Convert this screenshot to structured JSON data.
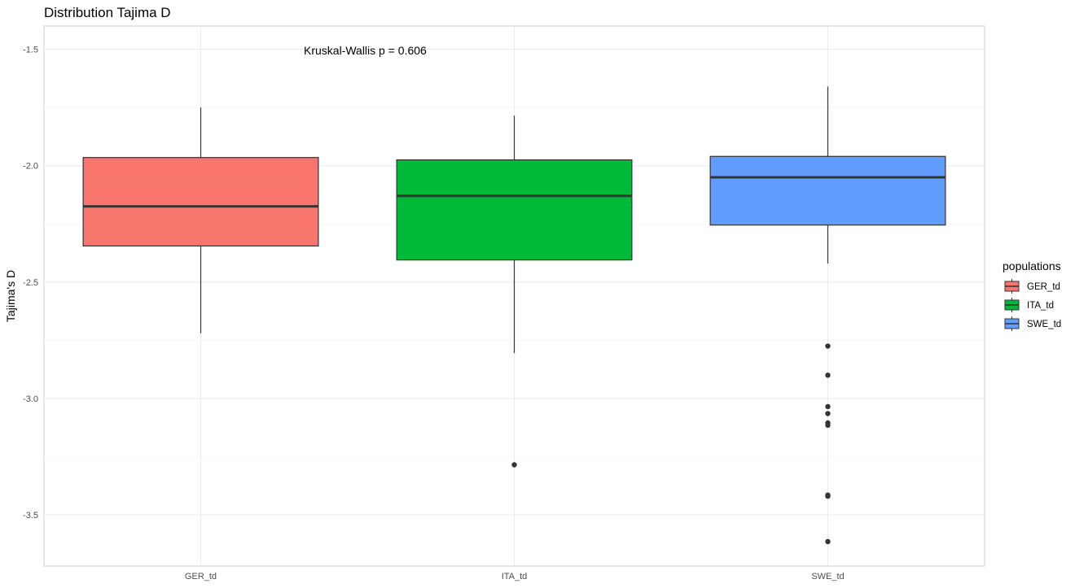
{
  "chart_data": {
    "type": "boxplot",
    "title": "Distribution Tajima D",
    "xlabel": "",
    "ylabel": "Tajima's D",
    "ylim": [
      -3.72,
      -1.4
    ],
    "yticks": [
      -1.5,
      -2.0,
      -2.5,
      -3.0,
      -3.5
    ],
    "ytick_labels": [
      "-1.5",
      "-2.0",
      "-2.5",
      "-3.0",
      "-3.5"
    ],
    "grid": true,
    "categories": [
      "GER_td",
      "ITA_td",
      "SWE_td"
    ],
    "series": [
      {
        "name": "GER_td",
        "color": "#F8766D",
        "whisker_low": -2.72,
        "q1": -2.345,
        "median": -2.175,
        "q3": -1.965,
        "whisker_high": -1.75,
        "outliers": []
      },
      {
        "name": "ITA_td",
        "color": "#00BA38",
        "whisker_low": -2.805,
        "q1": -2.405,
        "median": -2.13,
        "q3": -1.975,
        "whisker_high": -1.785,
        "outliers": [
          -3.285
        ]
      },
      {
        "name": "SWE_td",
        "color": "#619CFF",
        "whisker_low": -2.42,
        "q1": -2.255,
        "median": -2.05,
        "q3": -1.96,
        "whisker_high": -1.66,
        "outliers": [
          -2.775,
          -2.9,
          -3.035,
          -3.065,
          -3.105,
          -3.115,
          -3.415,
          -3.42,
          -3.615
        ]
      }
    ],
    "annotation": "Kruskal-Wallis p = 0.606",
    "legend": {
      "title": "populations",
      "position": "right",
      "entries": [
        "GER_td",
        "ITA_td",
        "SWE_td"
      ]
    }
  }
}
